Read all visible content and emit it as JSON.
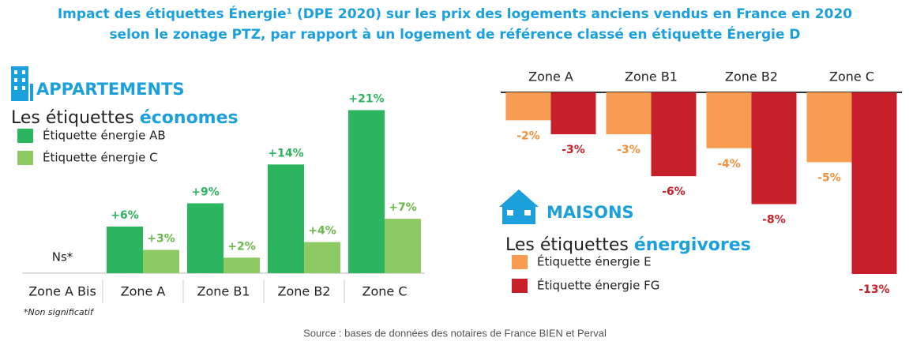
{
  "title": [
    "Impact des étiquettes Énergie¹ (DPE 2020) sur les prix des logements anciens vendus en France en 2020",
    "selon le zonage PTZ, par rapport à un logement de référence classé en étiquette Énergie D"
  ],
  "source": "Source : bases de données des notaires de France BIEN et Perval",
  "chart_data": [
    {
      "type": "bar",
      "heading": "APPARTEMENTS",
      "subtitle": "Les étiquettes",
      "subtitle_highlight": "économes",
      "categories": [
        "Zone A Bis",
        "Zone A",
        "Zone B1",
        "Zone B2",
        "Zone C"
      ],
      "series": [
        {
          "name": "Étiquette énergie AB",
          "color": "#2bb55e",
          "label_color": "#2bb55e",
          "values": [
            null,
            6,
            9,
            14,
            21
          ],
          "value_labels": [
            null,
            "+6%",
            "+9%",
            "+14%",
            "+21%"
          ]
        },
        {
          "name": "Étiquette énergie C",
          "color": "#8dca63",
          "label_color": "#6bb84a",
          "values": [
            null,
            3,
            2,
            4,
            7
          ],
          "value_labels": [
            null,
            "+3%",
            "+2%",
            "+4%",
            "+7%"
          ]
        }
      ],
      "annotation": "Ns*",
      "footnote": "*Non significatif",
      "ylim": [
        0,
        24
      ]
    },
    {
      "type": "bar",
      "heading": "MAISONS",
      "subtitle": "Les étiquettes",
      "subtitle_highlight": "énergivores",
      "categories": [
        "Zone A",
        "Zone B1",
        "Zone B2",
        "Zone C"
      ],
      "series": [
        {
          "name": "Étiquette énergie E",
          "color": "#f79c50",
          "label_color": "#f0913e",
          "values": [
            -2,
            -3,
            -4,
            -5
          ],
          "value_labels": [
            "-2%",
            "-3%",
            "-4%",
            "-5%"
          ]
        },
        {
          "name": "Étiquette énergie FG",
          "color": "#c8202a",
          "label_color": "#c8202a",
          "values": [
            -3,
            -6,
            -8,
            -13
          ],
          "value_labels": [
            "-3%",
            "-6%",
            "-8%",
            "-13%"
          ]
        }
      ],
      "ylim": [
        -13,
        0
      ]
    }
  ]
}
